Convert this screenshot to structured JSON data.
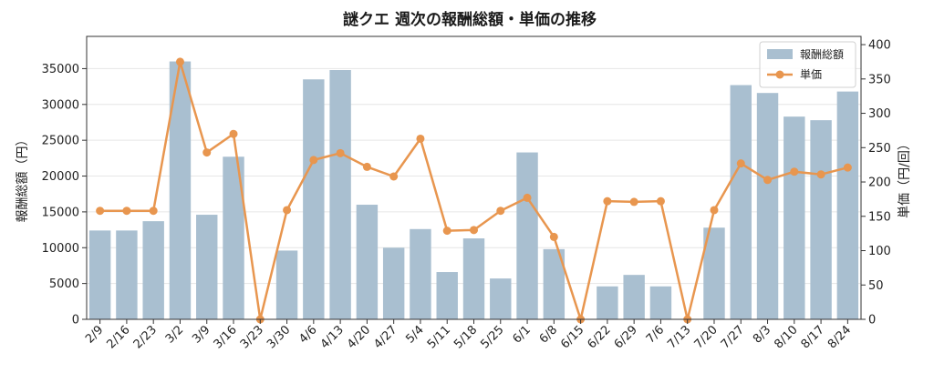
{
  "chart_data": {
    "type": "bar+line",
    "title": "謎クエ 週次の報酬総額・単価の推移",
    "xlabel": "",
    "ylabel_left": "報酬総額（円）",
    "ylabel_right": "単価（円/回）",
    "categories": [
      "2/9",
      "2/16",
      "2/23",
      "3/2",
      "3/9",
      "3/16",
      "3/23",
      "3/30",
      "4/6",
      "4/13",
      "4/20",
      "4/27",
      "5/4",
      "5/11",
      "5/18",
      "5/25",
      "6/1",
      "6/8",
      "6/15",
      "6/22",
      "6/29",
      "7/6",
      "7/13",
      "7/20",
      "7/27",
      "8/3",
      "8/10",
      "8/17",
      "8/24"
    ],
    "series": [
      {
        "name": "報酬総額",
        "type": "bar",
        "axis": "left",
        "color": "#a9bfd0",
        "values": [
          12400,
          12400,
          13700,
          36000,
          14600,
          22700,
          0,
          9600,
          33500,
          34800,
          16000,
          10000,
          12600,
          6600,
          11300,
          5700,
          23300,
          9800,
          0,
          4600,
          6200,
          4600,
          0,
          12800,
          32700,
          31600,
          28300,
          27800,
          31800
        ]
      },
      {
        "name": "単価",
        "type": "line",
        "axis": "right",
        "color": "#e8964f",
        "values": [
          158,
          158,
          158,
          375,
          243,
          270,
          0,
          159,
          232,
          242,
          222,
          208,
          263,
          129,
          130,
          158,
          177,
          120,
          0,
          172,
          171,
          172,
          0,
          159,
          227,
          203,
          215,
          211,
          221
        ]
      }
    ],
    "ylim_left": [
      0,
      39500
    ],
    "yticks_left": [
      0,
      5000,
      10000,
      15000,
      20000,
      25000,
      30000,
      35000
    ],
    "ylim_right": [
      0,
      412
    ],
    "yticks_right": [
      0,
      50,
      100,
      150,
      200,
      250,
      300,
      350,
      400
    ],
    "grid": "horizontal",
    "legend_position": "top-right"
  }
}
